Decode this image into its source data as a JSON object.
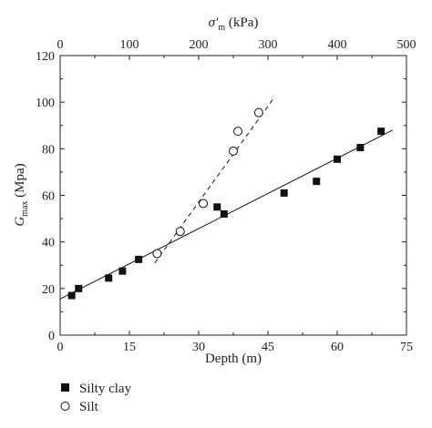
{
  "chart_data": {
    "type": "scatter",
    "xlabel": "Depth (m)",
    "ylabel_main": "G",
    "ylabel_sub": "max",
    "ylabel_unit": " (Mpa)",
    "top_xlabel_main": "σ′",
    "top_xlabel_sub": "m",
    "top_xlabel_unit": " (kPa)",
    "xlim": [
      0,
      75
    ],
    "ylim": [
      0,
      120
    ],
    "top_xlim": [
      0,
      500
    ],
    "xticks": [
      0,
      15,
      30,
      45,
      60,
      75
    ],
    "yticks": [
      0,
      20,
      40,
      60,
      80,
      100,
      120
    ],
    "top_xticks": [
      0,
      100,
      200,
      300,
      400,
      500
    ],
    "grid": false,
    "legend_position": "bottom-left",
    "series": [
      {
        "name": "Silty clay",
        "marker": "filled-square",
        "color": "#111111",
        "x": [
          2.5,
          4,
          10.5,
          13.5,
          17,
          34,
          35.5,
          48.5,
          55.5,
          60,
          65,
          69.5
        ],
        "y": [
          17,
          20,
          24.5,
          27.5,
          32.5,
          55,
          52,
          61,
          66,
          75.5,
          80.5,
          87.5
        ],
        "fit": {
          "x": [
            0,
            72
          ],
          "y": [
            15.5,
            88
          ]
        }
      },
      {
        "name": "Silt",
        "marker": "open-circle",
        "color": "#111111",
        "x": [
          21,
          26,
          31,
          37.5,
          38.5,
          43
        ],
        "y": [
          35,
          44.5,
          56.5,
          79,
          87.5,
          95.5
        ],
        "fit": {
          "x": [
            20.5,
            46
          ],
          "y": [
            31,
            101
          ]
        }
      }
    ]
  }
}
